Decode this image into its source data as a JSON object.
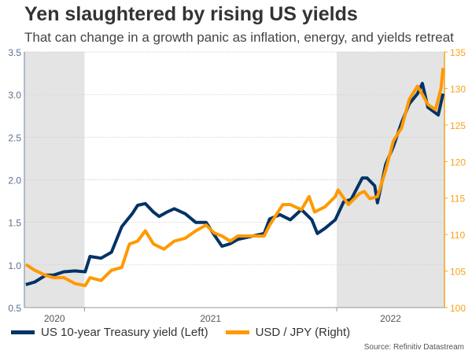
{
  "chart_data": {
    "type": "line",
    "title": "Yen slaughtered by rising US yields",
    "subtitle": "That can change in a growth panic as inflation, energy, and yields retreat",
    "source": "Source: Refinitiv Datastream",
    "x_range": [
      "2020-10-06",
      "2022-06-06"
    ],
    "x_tick_labels": [
      "2020",
      "2021",
      "2022"
    ],
    "shaded_years": [
      "2020",
      "2022"
    ],
    "left_axis": {
      "ylim": [
        0.5,
        3.5
      ],
      "ticks": [
        "0.5",
        "1.0",
        "1.5",
        "2.0",
        "2.5",
        "3.0",
        "3.5"
      ],
      "color": "#5a6f8f"
    },
    "right_axis": {
      "ylim": [
        100,
        135
      ],
      "ticks": [
        "100",
        "105",
        "110",
        "115",
        "120",
        "125",
        "130",
        "135"
      ],
      "color": "#f7a21b"
    },
    "grid": true,
    "legend_position": "bottom",
    "series": [
      {
        "name": "US 10-year Treasury yield (Left)",
        "axis": "left",
        "color": "#003366",
        "x": [
          "2020-10-08",
          "2020-10-21",
          "2020-11-06",
          "2020-11-17",
          "2020-12-02",
          "2020-12-18",
          "2021-01-02",
          "2021-01-09",
          "2021-01-25",
          "2021-02-09",
          "2021-02-24",
          "2021-03-11",
          "2021-03-19",
          "2021-03-30",
          "2021-04-11",
          "2021-04-19",
          "2021-04-30",
          "2021-05-11",
          "2021-05-27",
          "2021-06-11",
          "2021-06-26",
          "2021-07-08",
          "2021-07-19",
          "2021-07-31",
          "2021-08-11",
          "2021-09-18",
          "2021-09-26",
          "2021-10-11",
          "2021-10-26",
          "2021-11-11",
          "2021-11-26",
          "2021-12-04",
          "2021-12-15",
          "2021-12-30",
          "2022-01-11",
          "2022-01-22",
          "2022-02-07",
          "2022-02-14",
          "2022-02-25",
          "2022-03-01",
          "2022-03-13",
          "2022-03-24",
          "2022-04-05",
          "2022-04-16",
          "2022-04-28",
          "2022-05-05",
          "2022-05-13",
          "2022-05-28",
          "2022-06-04"
        ],
        "values": [
          0.77,
          0.8,
          0.88,
          0.88,
          0.92,
          0.93,
          0.92,
          1.1,
          1.08,
          1.15,
          1.45,
          1.6,
          1.7,
          1.72,
          1.62,
          1.57,
          1.62,
          1.66,
          1.6,
          1.5,
          1.5,
          1.35,
          1.22,
          1.25,
          1.3,
          1.37,
          1.54,
          1.59,
          1.53,
          1.65,
          1.53,
          1.37,
          1.43,
          1.53,
          1.74,
          1.77,
          2.02,
          2.02,
          1.93,
          1.73,
          2.18,
          2.39,
          2.67,
          2.89,
          3.01,
          3.13,
          2.85,
          2.76,
          3.01
        ]
      },
      {
        "name": "USD / JPY (Right)",
        "axis": "right",
        "color": "#ff9900",
        "x": [
          "2020-10-08",
          "2020-10-21",
          "2020-11-06",
          "2020-11-17",
          "2020-12-02",
          "2020-12-18",
          "2021-01-02",
          "2021-01-09",
          "2021-01-25",
          "2021-02-09",
          "2021-02-24",
          "2021-03-07",
          "2021-03-19",
          "2021-03-30",
          "2021-04-11",
          "2021-04-26",
          "2021-05-11",
          "2021-05-27",
          "2021-06-11",
          "2021-06-26",
          "2021-07-08",
          "2021-07-19",
          "2021-07-31",
          "2021-08-11",
          "2021-09-18",
          "2021-09-26",
          "2021-10-15",
          "2021-10-26",
          "2021-11-11",
          "2021-11-22",
          "2021-11-30",
          "2021-12-15",
          "2021-12-30",
          "2022-01-03",
          "2022-01-18",
          "2022-02-03",
          "2022-02-10",
          "2022-02-18",
          "2022-03-01",
          "2022-03-13",
          "2022-03-24",
          "2022-04-05",
          "2022-04-16",
          "2022-04-28",
          "2022-05-05",
          "2022-05-13",
          "2022-05-24",
          "2022-06-01",
          "2022-06-04"
        ],
        "values": [
          105.9,
          105.1,
          104.4,
          104.1,
          104.1,
          103.3,
          103.0,
          104.1,
          103.7,
          105.1,
          105.5,
          108.7,
          109.1,
          110.5,
          108.7,
          108.0,
          109.1,
          109.5,
          110.5,
          111.3,
          110.2,
          109.8,
          109.1,
          109.8,
          109.8,
          111.3,
          114.1,
          114.1,
          113.4,
          115.2,
          113.1,
          113.8,
          115.2,
          116.1,
          114.1,
          115.6,
          115.9,
          114.9,
          115.2,
          118.8,
          122.8,
          124.6,
          128.5,
          130.3,
          129.2,
          127.8,
          127.1,
          130.0,
          132.8
        ]
      }
    ]
  }
}
